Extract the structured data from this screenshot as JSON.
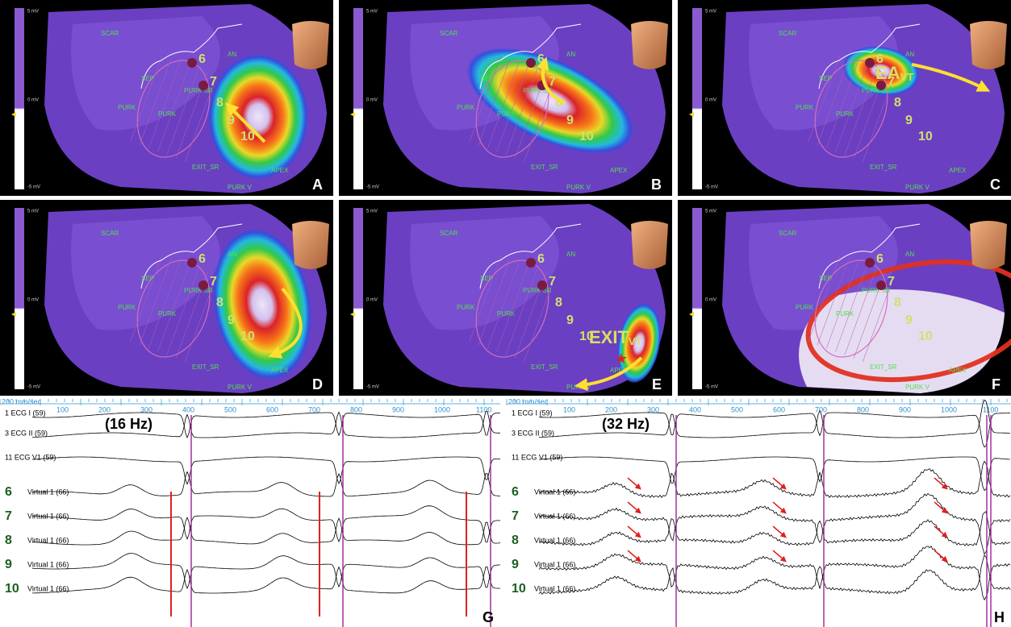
{
  "map": {
    "scale": [
      "5 mV",
      "0 mV",
      "-5 mV"
    ],
    "labels": [
      "SCAR",
      "AN",
      "SEP",
      "PURK SR",
      "PURK",
      "PURK",
      "EXIT_SR",
      "APEX",
      "PURK V"
    ],
    "sites": [
      "6",
      "7",
      "8",
      "9",
      "10"
    ]
  },
  "panels": [
    {
      "letter": "A"
    },
    {
      "letter": "B"
    },
    {
      "letter": "C",
      "annotation": "EA",
      "annotation_sub": "VT"
    },
    {
      "letter": "D"
    },
    {
      "letter": "E",
      "annotation": "EXIT",
      "annotation_sub": "VT"
    },
    {
      "letter": "F"
    }
  ],
  "tracings": [
    {
      "letter": "G",
      "speed": "200 mm/sec",
      "filter": "(16 Hz)"
    },
    {
      "letter": "H",
      "speed": "200 mm/sec",
      "filter": "(32 Hz)"
    }
  ],
  "ruler": [
    "100",
    "200",
    "300",
    "400",
    "500",
    "600",
    "700",
    "800",
    "900",
    "1000",
    "1100"
  ],
  "channels": [
    "1 ECG I (59)",
    "3 ECG II (59)",
    "11 ECG V1 (59)",
    "Virtual 1 (66)",
    "Virtual 1 (66)",
    "Virtual 1 (66)",
    "Virtual 1 (66)",
    "Virtual 1 (66)"
  ],
  "channel_sites": [
    "6",
    "7",
    "8",
    "9",
    "10"
  ]
}
